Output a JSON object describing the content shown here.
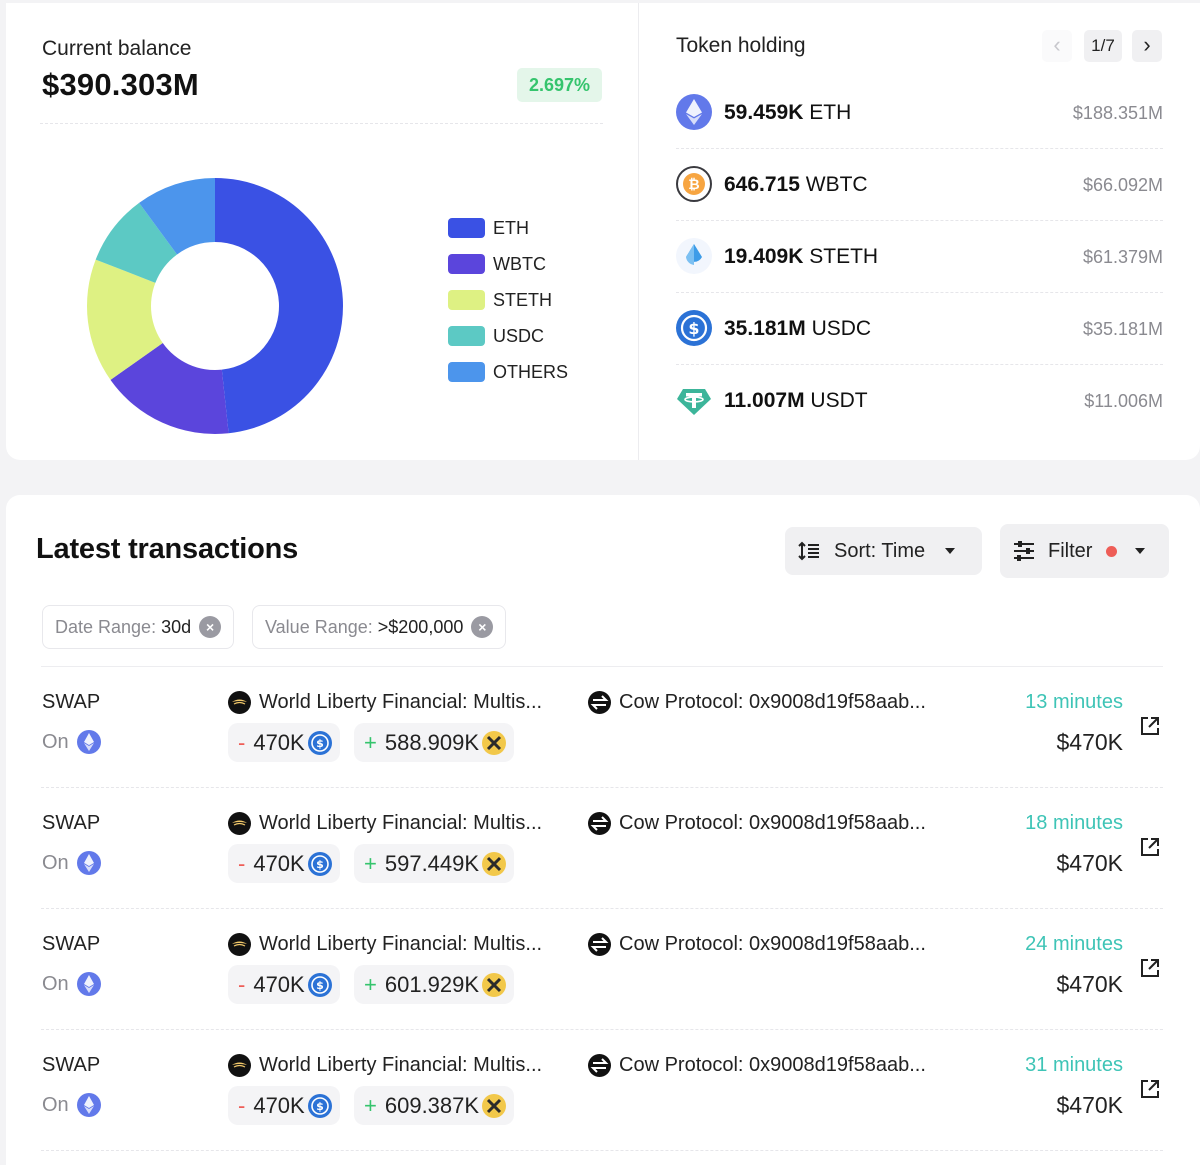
{
  "balance": {
    "label": "Current balance",
    "value": "$390.303M",
    "change": "2.697%",
    "change_color": "#35c46d"
  },
  "chart_data": {
    "type": "pie",
    "categories": [
      "ETH",
      "WBTC",
      "STETH",
      "USDC",
      "OTHERS"
    ],
    "values": [
      48.3,
      16.9,
      15.7,
      9.0,
      10.1
    ],
    "colors": [
      "#3a51e4",
      "#5b45dc",
      "#def183",
      "#5cc9c4",
      "#4c95ec"
    ],
    "hole": "donut",
    "legend_position": "right"
  },
  "token_holding": {
    "title": "Token holding",
    "page": "1/7",
    "prev_icon": "chevron-left-icon",
    "next_icon": "chevron-right-icon",
    "tokens": [
      {
        "amount": "59.459K",
        "symbol": "ETH",
        "value": "$188.351M",
        "icon": "eth-icon"
      },
      {
        "amount": "646.715",
        "symbol": "WBTC",
        "value": "$66.092M",
        "icon": "wbtc-icon"
      },
      {
        "amount": "19.409K",
        "symbol": "STETH",
        "value": "$61.379M",
        "icon": "steth-icon"
      },
      {
        "amount": "35.181M",
        "symbol": "USDC",
        "value": "$35.181M",
        "icon": "usdc-icon"
      },
      {
        "amount": "11.007M",
        "symbol": "USDT",
        "value": "$11.006M",
        "icon": "usdt-icon"
      }
    ]
  },
  "transactions": {
    "title": "Latest transactions",
    "sort_label": "Sort: Time",
    "filter_label": "Filter",
    "filter_indicator_color": "#ee5d57",
    "chips": [
      {
        "key": "Date Range:",
        "value": "30d"
      },
      {
        "key": "Value Range:",
        "value": ">$200,000"
      }
    ],
    "rows": [
      {
        "type": "SWAP",
        "on": "On",
        "from": "World Liberty Financial: Multis...",
        "to": "Cow Protocol: 0x9008d19f58aab...",
        "out_amount": "470K",
        "in_amount": "588.909K",
        "time": "13 minutes",
        "usd": "$470K"
      },
      {
        "type": "SWAP",
        "on": "On",
        "from": "World Liberty Financial: Multis...",
        "to": "Cow Protocol: 0x9008d19f58aab...",
        "out_amount": "470K",
        "in_amount": "597.449K",
        "time": "18 minutes",
        "usd": "$470K"
      },
      {
        "type": "SWAP",
        "on": "On",
        "from": "World Liberty Financial: Multis...",
        "to": "Cow Protocol: 0x9008d19f58aab...",
        "out_amount": "470K",
        "in_amount": "601.929K",
        "time": "24 minutes",
        "usd": "$470K"
      },
      {
        "type": "SWAP",
        "on": "On",
        "from": "World Liberty Financial: Multis...",
        "to": "Cow Protocol: 0x9008d19f58aab...",
        "out_amount": "470K",
        "in_amount": "609.387K",
        "time": "31 minutes",
        "usd": "$470K"
      }
    ]
  }
}
